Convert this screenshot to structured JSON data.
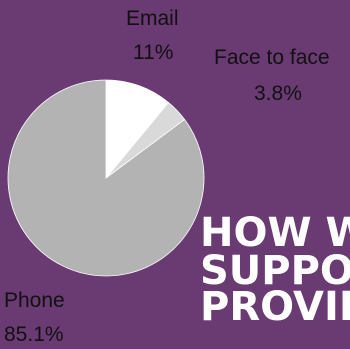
{
  "chart_data": {
    "type": "pie",
    "title_lines": [
      "HOW WA",
      "SUPPOR",
      "PROVIDE"
    ],
    "slices": [
      {
        "label": "Email",
        "value": 11,
        "value_label": "11%",
        "color": "#ffffff"
      },
      {
        "label": "Face to face",
        "value": 3.8,
        "value_label": "3.8%",
        "color": "#d9d9d9"
      },
      {
        "label": "Phone",
        "value": 85.1,
        "value_label": "85.1%",
        "color": "#b3b3b3"
      }
    ],
    "legend": "none"
  },
  "colors": {
    "background": "#6a3a72",
    "label_text": "#111111",
    "title_text": "#ffffff"
  }
}
